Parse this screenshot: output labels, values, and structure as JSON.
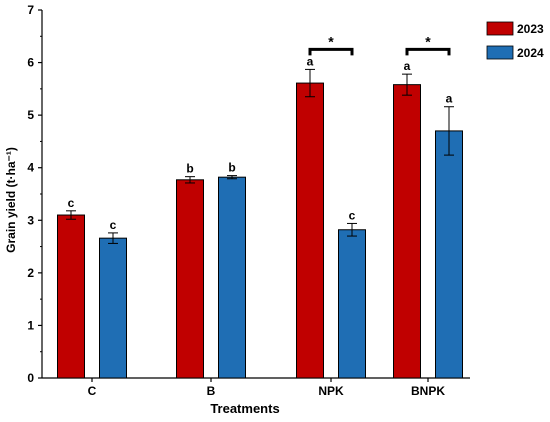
{
  "chart_data": {
    "type": "bar",
    "title": "",
    "xlabel": "Treatments",
    "ylabel": "Grain yield (t·ha⁻¹)",
    "ylim": [
      0,
      7
    ],
    "yticks": [
      "0",
      "1",
      "2",
      "3",
      "4",
      "5",
      "6",
      "7"
    ],
    "categories": [
      "C",
      "B",
      "NPK",
      "BNPK"
    ],
    "legend_position": "top-right",
    "series": [
      {
        "name": "2023",
        "color": "#C00000",
        "values": [
          3.1,
          3.77,
          5.61,
          5.58
        ],
        "errors": [
          0.08,
          0.06,
          0.26,
          0.2
        ],
        "letters": [
          "c",
          "b",
          "a",
          "a"
        ]
      },
      {
        "name": "2024",
        "color": "#1F6EB4",
        "values": [
          2.66,
          3.82,
          2.82,
          4.7
        ],
        "errors": [
          0.1,
          0.03,
          0.12,
          0.46
        ],
        "letters": [
          "c",
          "b",
          "c",
          "a"
        ]
      }
    ],
    "significance": [
      {
        "category": "NPK",
        "label": "*"
      },
      {
        "category": "BNPK",
        "label": "*"
      }
    ]
  }
}
